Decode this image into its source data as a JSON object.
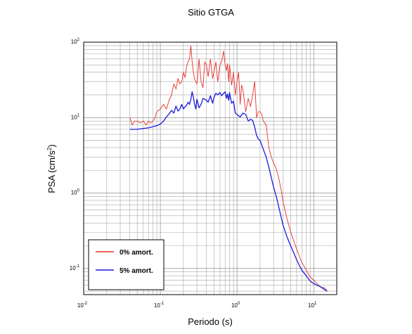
{
  "chart_data": {
    "type": "line",
    "title": "Sitio GTGA",
    "xlabel": "Periodo (s)",
    "ylabel": "PSA (cm/s",
    "ylabel_exp": "2",
    "ylabel_close": ")",
    "xscale": "log",
    "yscale": "log",
    "xlim": [
      0.01,
      20
    ],
    "ylim": [
      0.045,
      100
    ],
    "grid": true,
    "x_ticks": [
      {
        "base": "10",
        "exp": "-2"
      },
      {
        "base": "10",
        "exp": "-1"
      },
      {
        "base": "10",
        "exp": "0"
      },
      {
        "base": "10",
        "exp": "1"
      }
    ],
    "y_ticks": [
      {
        "base": "10",
        "exp": "-1"
      },
      {
        "base": "10",
        "exp": "0"
      },
      {
        "base": "10",
        "exp": "1"
      },
      {
        "base": "10",
        "exp": "2"
      }
    ],
    "legend_position": "bottom-left",
    "series": [
      {
        "name": "0% amort.",
        "color": "#e8302a",
        "x": [
          0.04,
          0.043,
          0.046,
          0.05,
          0.055,
          0.06,
          0.065,
          0.07,
          0.075,
          0.08,
          0.085,
          0.09,
          0.1,
          0.11,
          0.12,
          0.13,
          0.14,
          0.15,
          0.16,
          0.17,
          0.18,
          0.19,
          0.2,
          0.21,
          0.22,
          0.23,
          0.24,
          0.25,
          0.26,
          0.27,
          0.28,
          0.3,
          0.32,
          0.34,
          0.36,
          0.38,
          0.4,
          0.42,
          0.45,
          0.48,
          0.5,
          0.53,
          0.56,
          0.6,
          0.63,
          0.67,
          0.7,
          0.73,
          0.75,
          0.78,
          0.8,
          0.85,
          0.9,
          0.95,
          1.0,
          1.05,
          1.1,
          1.15,
          1.2,
          1.3,
          1.4,
          1.5,
          1.6,
          1.7,
          1.8,
          1.9,
          2.0,
          2.1,
          2.2,
          2.4,
          2.6,
          2.8,
          3.0,
          3.2,
          3.5,
          3.8,
          4.0,
          4.5,
          5.0,
          5.5,
          6.0,
          6.5,
          7.0,
          8.0,
          9.0,
          10.0,
          11.0,
          12.0,
          13.0,
          14.0,
          15.0
        ],
        "y": [
          10,
          8,
          9,
          9,
          8.5,
          9,
          8,
          9,
          8.5,
          9,
          10,
          12,
          13,
          15,
          13,
          17,
          20,
          28,
          24,
          33,
          28,
          30,
          40,
          34,
          48,
          55,
          60,
          90,
          55,
          40,
          32,
          28,
          60,
          30,
          25,
          55,
          50,
          35,
          60,
          33,
          40,
          55,
          30,
          50,
          55,
          76,
          50,
          42,
          52,
          30,
          50,
          27,
          40,
          20,
          30,
          40,
          15,
          27,
          23,
          12,
          18,
          14,
          20,
          30,
          10,
          12,
          12,
          11,
          9,
          8,
          4,
          3,
          2.5,
          2.2,
          1.6,
          1.05,
          0.75,
          0.45,
          0.31,
          0.23,
          0.18,
          0.145,
          0.12,
          0.095,
          0.077,
          0.07,
          0.063,
          0.058,
          0.056,
          0.055,
          0.05
        ]
      },
      {
        "name": "5% amort.",
        "color": "#1a1adc",
        "x": [
          0.04,
          0.05,
          0.06,
          0.07,
          0.08,
          0.09,
          0.1,
          0.11,
          0.12,
          0.13,
          0.14,
          0.15,
          0.16,
          0.17,
          0.18,
          0.19,
          0.2,
          0.21,
          0.22,
          0.23,
          0.24,
          0.25,
          0.26,
          0.27,
          0.28,
          0.29,
          0.3,
          0.32,
          0.34,
          0.36,
          0.38,
          0.4,
          0.42,
          0.45,
          0.48,
          0.5,
          0.53,
          0.56,
          0.6,
          0.63,
          0.67,
          0.7,
          0.73,
          0.75,
          0.78,
          0.8,
          0.85,
          0.9,
          0.95,
          1.0,
          1.1,
          1.2,
          1.3,
          1.4,
          1.5,
          1.6,
          1.7,
          1.8,
          1.9,
          2.0,
          2.2,
          2.4,
          2.6,
          2.8,
          3.0,
          3.3,
          3.6,
          4.0,
          4.5,
          5.0,
          5.5,
          6.0,
          6.5,
          7.0,
          8.0,
          9.0,
          10.0,
          11.0,
          12.0,
          13.0,
          14.0,
          15.0
        ],
        "y": [
          7,
          7,
          7.2,
          7.3,
          7.6,
          7.8,
          8.2,
          9,
          10.2,
          11.2,
          12.5,
          11.5,
          14.2,
          12.2,
          13,
          15,
          13,
          14,
          14.5,
          16,
          15,
          17.5,
          22,
          18.5,
          15,
          13,
          17.5,
          13.5,
          15,
          18,
          17.5,
          17,
          16,
          19.5,
          15.5,
          18.5,
          21,
          20,
          21.5,
          19.5,
          21,
          22,
          18,
          20.5,
          17,
          21.5,
          15.5,
          16.5,
          11.5,
          11,
          10.2,
          11.5,
          11,
          9,
          9.5,
          9.2,
          7.5,
          5.8,
          5.2,
          5,
          3.8,
          3,
          2.2,
          1.6,
          1.2,
          0.85,
          0.58,
          0.37,
          0.26,
          0.2,
          0.16,
          0.13,
          0.11,
          0.095,
          0.08,
          0.068,
          0.063,
          0.06,
          0.058,
          0.055,
          0.052,
          0.05
        ]
      }
    ]
  }
}
